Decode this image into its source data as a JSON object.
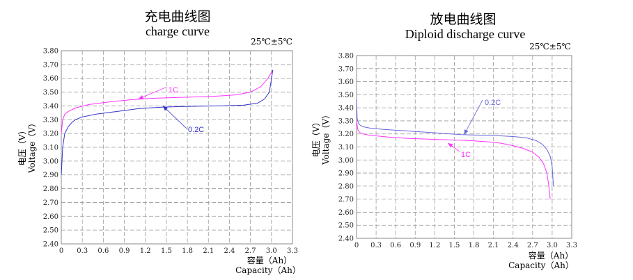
{
  "chart_data": [
    {
      "type": "line",
      "title": "充电曲线图",
      "subtitle": "charge curve",
      "annotation": "25℃±5℃",
      "xlabel": "容量（Ah）",
      "xlabel_en": "Capacity（Ah）",
      "ylabel": "电压（V）",
      "ylabel_en": "Voltage（V）",
      "xlim": [
        0,
        3.3
      ],
      "ylim": [
        2.4,
        3.8
      ],
      "x_ticks": [
        "0",
        "0.3",
        "0.6",
        "0.9",
        "1.2",
        "1.5",
        "1.8",
        "2.1",
        "2.4",
        "2.7",
        "3.0",
        "3.3"
      ],
      "y_ticks": [
        "2.40",
        "2.50",
        "2.60",
        "2.70",
        "2.80",
        "2.90",
        "3.00",
        "3.10",
        "3.20",
        "3.30",
        "3.40",
        "3.50",
        "3.60",
        "3.70",
        "3.80"
      ],
      "grid": true,
      "series": [
        {
          "name": "1C",
          "color": "#ff33ff",
          "x": [
            0.0,
            0.02,
            0.05,
            0.1,
            0.2,
            0.4,
            0.7,
            1.0,
            1.3,
            1.6,
            1.9,
            2.2,
            2.5,
            2.7,
            2.85,
            2.95,
            3.02
          ],
          "y": [
            3.2,
            3.3,
            3.34,
            3.36,
            3.385,
            3.41,
            3.43,
            3.445,
            3.455,
            3.46,
            3.465,
            3.47,
            3.48,
            3.5,
            3.54,
            3.6,
            3.66
          ]
        },
        {
          "name": "0.2C",
          "color": "#3333cc",
          "x": [
            0.0,
            0.02,
            0.05,
            0.1,
            0.15,
            0.2,
            0.3,
            0.5,
            0.8,
            1.1,
            1.4,
            1.7,
            2.0,
            2.3,
            2.6,
            2.8,
            2.9,
            2.97,
            3.02
          ],
          "y": [
            2.9,
            3.1,
            3.2,
            3.25,
            3.28,
            3.3,
            3.32,
            3.34,
            3.36,
            3.38,
            3.39,
            3.395,
            3.398,
            3.4,
            3.405,
            3.42,
            3.45,
            3.5,
            3.66
          ]
        }
      ],
      "series_labels": [
        {
          "name": "1C",
          "text": "1C"
        },
        {
          "name": "0.2C",
          "text": "0.2C"
        }
      ]
    },
    {
      "type": "line",
      "title": "放电曲线图",
      "subtitle": "Diploid discharge curve",
      "annotation": "25℃±5℃",
      "xlabel": "容量（Ah）",
      "xlabel_en": "Capacity（Ah）",
      "ylabel": "电压（V）",
      "ylabel_en": "Voltage（V）",
      "xlim": [
        0,
        3.3
      ],
      "ylim": [
        2.4,
        3.8
      ],
      "x_ticks": [
        "0",
        "0.3",
        "0.6",
        "0.9",
        "1.2",
        "1.5",
        "1.8",
        "2.1",
        "2.4",
        "2.7",
        "3.0",
        "3.3"
      ],
      "y_ticks": [
        "2.40",
        "2.50",
        "2.60",
        "2.70",
        "2.80",
        "2.90",
        "3.00",
        "3.10",
        "3.20",
        "3.30",
        "3.40",
        "3.50",
        "3.60",
        "3.70",
        "3.80"
      ],
      "grid": true,
      "series": [
        {
          "name": "0.2C",
          "color": "#6666dd",
          "x": [
            0.0,
            0.01,
            0.03,
            0.06,
            0.1,
            0.2,
            0.4,
            0.7,
            1.0,
            1.3,
            1.6,
            1.9,
            2.2,
            2.4,
            2.6,
            2.75,
            2.85,
            2.92,
            2.97,
            3.0,
            3.02
          ],
          "y": [
            3.47,
            3.32,
            3.28,
            3.265,
            3.255,
            3.245,
            3.235,
            3.225,
            3.215,
            3.205,
            3.195,
            3.19,
            3.185,
            3.18,
            3.17,
            3.15,
            3.12,
            3.08,
            3.03,
            2.95,
            2.8
          ]
        },
        {
          "name": "1C",
          "color": "#ff33ff",
          "x": [
            0.0,
            0.02,
            0.05,
            0.1,
            0.2,
            0.5,
            0.8,
            1.1,
            1.4,
            1.7,
            2.0,
            2.2,
            2.4,
            2.55,
            2.7,
            2.8,
            2.87,
            2.92,
            2.95,
            2.97
          ],
          "y": [
            3.3,
            3.23,
            3.21,
            3.2,
            3.19,
            3.175,
            3.165,
            3.16,
            3.155,
            3.15,
            3.14,
            3.13,
            3.11,
            3.09,
            3.06,
            3.02,
            2.97,
            2.9,
            2.8,
            2.7
          ]
        }
      ],
      "series_labels": [
        {
          "name": "0.2C",
          "text": "0.2C"
        },
        {
          "name": "1C",
          "text": "1C"
        }
      ]
    }
  ]
}
